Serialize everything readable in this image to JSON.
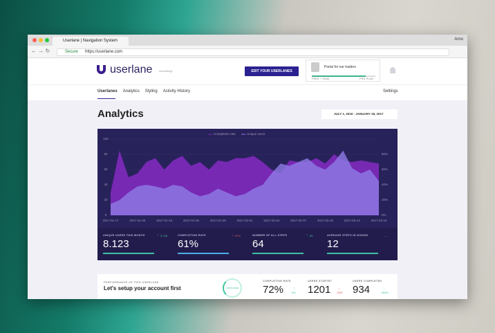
{
  "browser": {
    "tab_title": "Userlane | Navigation System",
    "user": "Arno",
    "secure": "Secure",
    "url": "https://userlane.com"
  },
  "header": {
    "logo": "userlane",
    "tagline": "something!",
    "button": "EDIT YOUR USERLANES",
    "portal": "Portal for our traders",
    "plan_left": "FREE / TEAM",
    "plan_right": "PRO PLAN"
  },
  "nav": {
    "tabs": [
      "Userlanes",
      "Analytics",
      "Styling",
      "Activity History"
    ],
    "settings": "Settings"
  },
  "page": {
    "title": "Analytics",
    "date_range": "JULY 1, 2016 - JANUARY 18, 2017"
  },
  "chart": {
    "type": "area",
    "categories": [
      "2017-01-17",
      null,
      null,
      "2017-01-20",
      null,
      null,
      "2017-01-23",
      null,
      null,
      "2017-01-26",
      null,
      null,
      "2017-01-29",
      null,
      null,
      "2017-02-01",
      null,
      null,
      "2017-02-04",
      null,
      null,
      "2017-02-07",
      null,
      null,
      "2017-02-10",
      null,
      null,
      "2017-02-13",
      null,
      null,
      "2017-02-16"
    ],
    "series": [
      {
        "name": "Completion rate",
        "color": "#7b2ab8",
        "axis": "y2",
        "values": [
          30,
          85,
          50,
          55,
          70,
          75,
          60,
          72,
          78,
          65,
          70,
          60,
          72,
          70,
          75,
          75,
          78,
          70,
          60,
          55,
          72,
          70,
          70,
          75,
          68,
          80,
          72,
          70,
          72,
          70,
          68
        ]
      },
      {
        "name": "Unique users",
        "color": "#8f7ce6",
        "values": [
          15,
          20,
          30,
          38,
          40,
          38,
          35,
          40,
          38,
          30,
          25,
          28,
          35,
          30,
          25,
          28,
          35,
          40,
          55,
          68,
          65,
          70,
          75,
          65,
          60,
          70,
          85,
          62,
          55,
          60,
          45
        ]
      }
    ],
    "ylim": [
      0,
      100
    ],
    "yticks": [
      0,
      20,
      40,
      60,
      80,
      100
    ],
    "y2lim": [
      0,
      100
    ],
    "y2ticks": [
      {
        "value": 0,
        "label": "0%"
      },
      {
        "value": 20,
        "label": "20%"
      },
      {
        "value": 40,
        "label": "40%"
      },
      {
        "value": 60,
        "label": "60%"
      },
      {
        "value": 80,
        "label": "80%"
      }
    ]
  },
  "stats": [
    {
      "label": "UNIQUE USERS THIS MONTH",
      "value": "8.123",
      "change": "3,728",
      "trend": "up"
    },
    {
      "label": "COMPLETION RATE",
      "value": "61%",
      "change": "67%",
      "trend": "down"
    },
    {
      "label": "NUMBER OF ALL STEPS",
      "value": "64",
      "change": "69",
      "trend": "up"
    },
    {
      "label": "AVERAGE STEPS IN GUIDES",
      "value": "12",
      "change": "—",
      "trend": "none"
    }
  ],
  "performance": {
    "label": "PERFORMANCE OF THIS USERLANE",
    "title": "Let's setup your account first",
    "ring": "COMPLETED",
    "metrics": [
      {
        "label": "COMPLETION RATE",
        "value": "72%",
        "change": "6%",
        "trend": "up"
      },
      {
        "label": "USERS STARTET",
        "value": "1201",
        "change": "1363",
        "trend": "down"
      },
      {
        "label": "USERS COMPLETED",
        "value": "934",
        "change": "894%",
        "trend": "up"
      }
    ]
  }
}
